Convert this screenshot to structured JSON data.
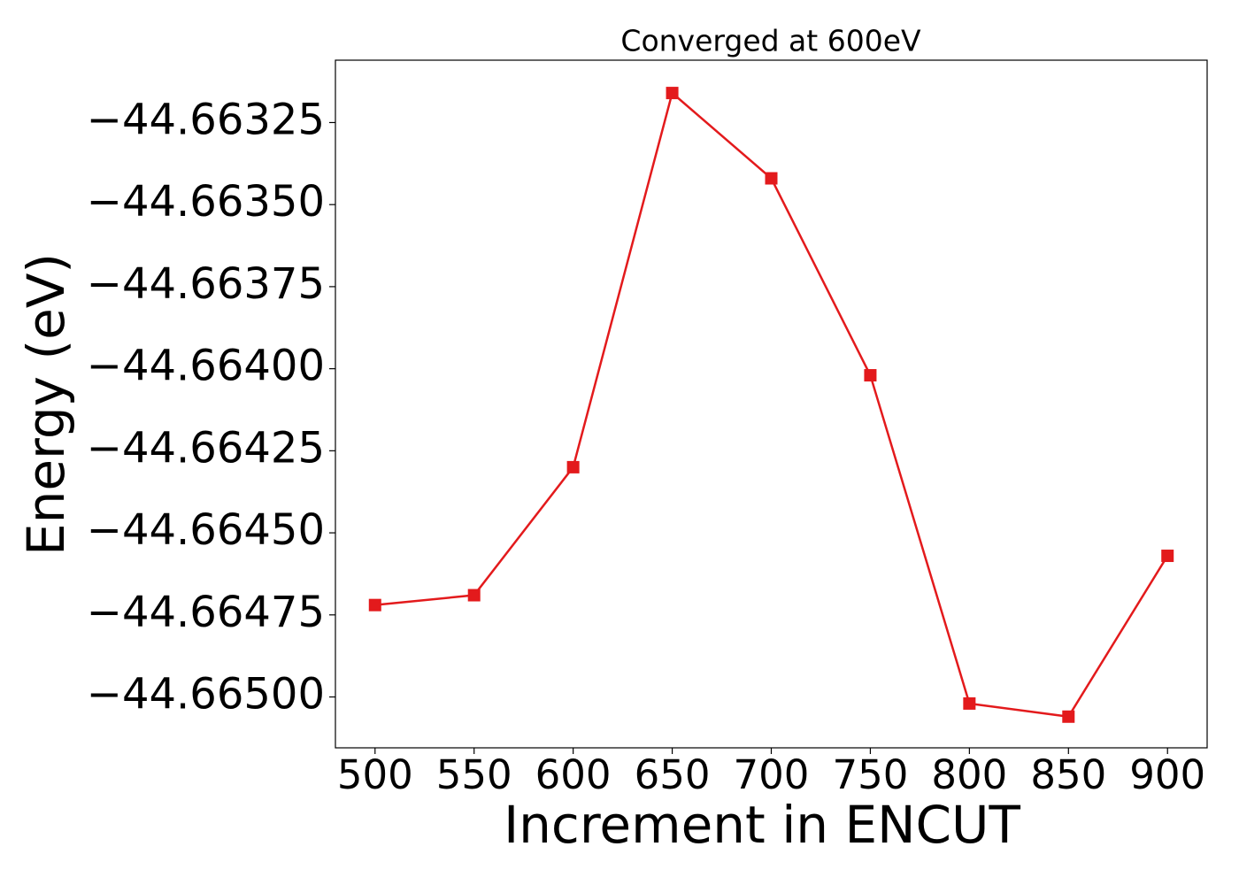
{
  "chart_data": {
    "type": "line",
    "title": "Converged at 600eV",
    "x_label": "Increment in ENCUT",
    "y_label": "Energy (eV)",
    "x": [
      500,
      550,
      600,
      650,
      700,
      750,
      800,
      850,
      900
    ],
    "series": [
      {
        "color": "#e31a1c",
        "marker": "square",
        "values": [
          -44.66472,
          -44.66469,
          -44.6643,
          -44.66316,
          -44.66342,
          -44.66402,
          -44.66502,
          -44.66506,
          -44.66457
        ]
      }
    ],
    "xlim": [
      480,
      920
    ],
    "xticks": [
      500,
      550,
      600,
      650,
      700,
      750,
      800,
      850,
      900
    ],
    "ylim": [
      -44.665155,
      -44.66306
    ],
    "yticks": [
      {
        "value": -44.66325,
        "label": "−44.66325"
      },
      {
        "value": -44.6635,
        "label": "−44.66350"
      },
      {
        "value": -44.66375,
        "label": "−44.66375"
      },
      {
        "value": -44.664,
        "label": "−44.66400"
      },
      {
        "value": -44.66425,
        "label": "−44.66425"
      },
      {
        "value": -44.6645,
        "label": "−44.66450"
      },
      {
        "value": -44.66475,
        "label": "−44.66475"
      },
      {
        "value": -44.665,
        "label": "−44.66500"
      }
    ],
    "grid": false
  }
}
